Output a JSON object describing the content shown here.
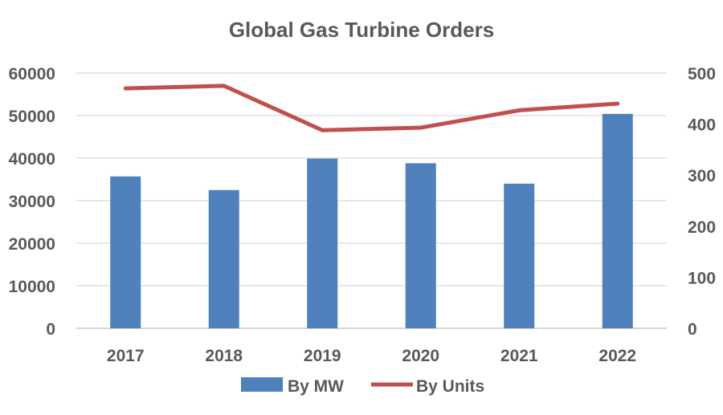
{
  "chart_data": {
    "type": "bar+line",
    "title": "Global Gas Turbine Orders",
    "categories": [
      "2017",
      "2018",
      "2019",
      "2020",
      "2021",
      "2022"
    ],
    "series": [
      {
        "name": "By MW",
        "type": "bar",
        "axis": "left",
        "color": "#4F81BD",
        "values": [
          35700,
          32500,
          39900,
          38800,
          34000,
          50400
        ]
      },
      {
        "name": "By Units",
        "type": "line",
        "axis": "right",
        "color": "#C0504D",
        "values": [
          470,
          475,
          388,
          393,
          427,
          440
        ]
      }
    ],
    "y_left": {
      "min": 0,
      "max": 60000,
      "ticks": [
        "0",
        "10000",
        "20000",
        "30000",
        "40000",
        "50000",
        "60000"
      ]
    },
    "y_right": {
      "min": 0,
      "max": 500,
      "ticks": [
        "0",
        "100",
        "200",
        "300",
        "400",
        "500"
      ]
    },
    "gridlines": true,
    "legend_position": "bottom"
  }
}
